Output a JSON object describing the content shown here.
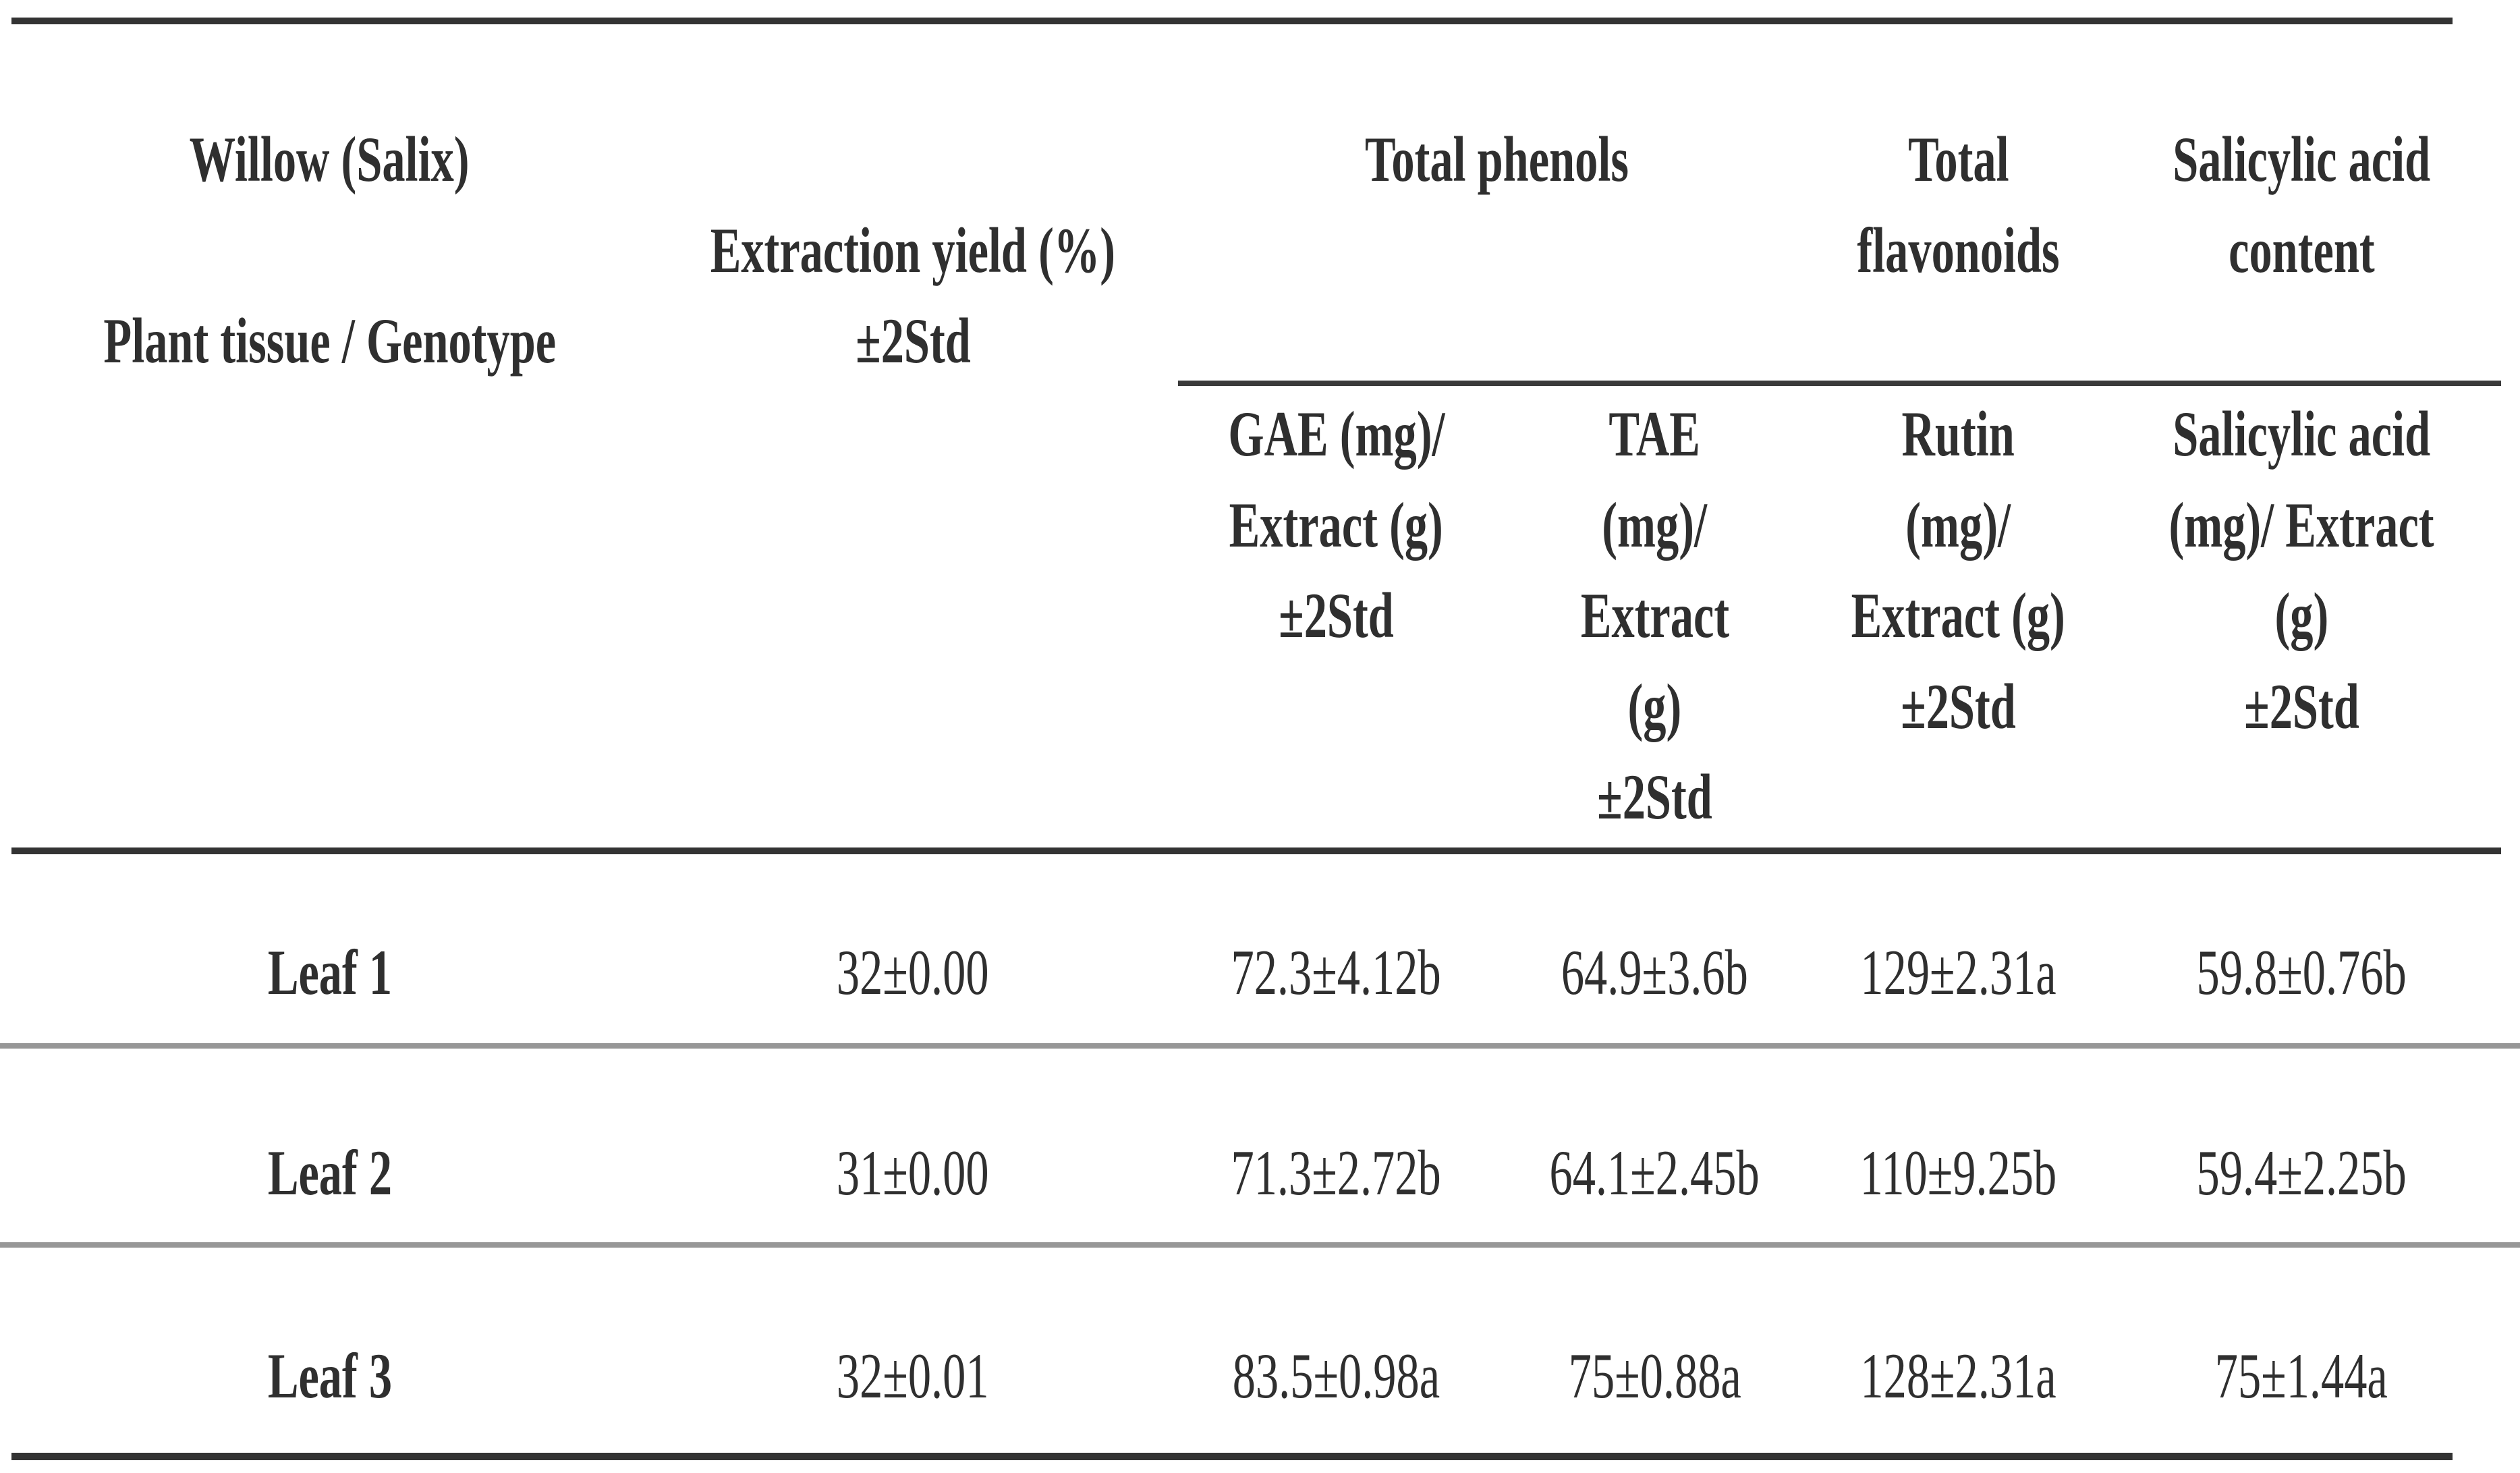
{
  "header": {
    "stub": {
      "line1": "Willow (Salix)",
      "line2": "",
      "line3": "Plant tissue / Genotype"
    },
    "extraction": {
      "line1": "",
      "line2": "Extraction yield (%)",
      "line3": "±2Std"
    },
    "total_phenols": "Total phenols",
    "total_flavonoids": {
      "line1": "Total",
      "line2": "flavonoids"
    },
    "salicylic_content": {
      "line1": "Salicylic acid",
      "line2": "content"
    }
  },
  "subheader": {
    "gae": [
      "GAE (mg)/",
      "Extract (g)",
      "±2Std"
    ],
    "tae": [
      "TAE",
      "(mg)/",
      "Extract",
      "(g)",
      "±2Std"
    ],
    "rutin": [
      "Rutin",
      "(mg)/",
      "Extract (g)",
      "±2Std"
    ],
    "salicylic": [
      "Salicylic acid",
      "(mg)/ Extract",
      "(g)",
      "±2Std"
    ]
  },
  "rows": [
    {
      "genotype": "Leaf 1",
      "extraction_yield": "32±0.00",
      "total_phenols_gae": "72.3±4.12b",
      "total_phenols_tae": "64.9±3.6b",
      "flavonoids_rutin": "129±2.31a",
      "salicylic_acid": "59.8±0.76b"
    },
    {
      "genotype": "Leaf 2",
      "extraction_yield": "31±0.00",
      "total_phenols_gae": "71.3±2.72b",
      "total_phenols_tae": "64.1±2.45b",
      "flavonoids_rutin": "110±9.25b",
      "salicylic_acid": "59.4±2.25b"
    },
    {
      "genotype": "Leaf 3",
      "extraction_yield": "32±0.01",
      "total_phenols_gae": "83.5±0.98a",
      "total_phenols_tae": "75±0.88a",
      "flavonoids_rutin": "128±2.31a",
      "salicylic_acid": "75±1.44a"
    }
  ],
  "colors": {
    "text": "#2f2f2f",
    "rule_dark": "#333333",
    "rule_gray": "#979797",
    "background": "#ffffff"
  }
}
